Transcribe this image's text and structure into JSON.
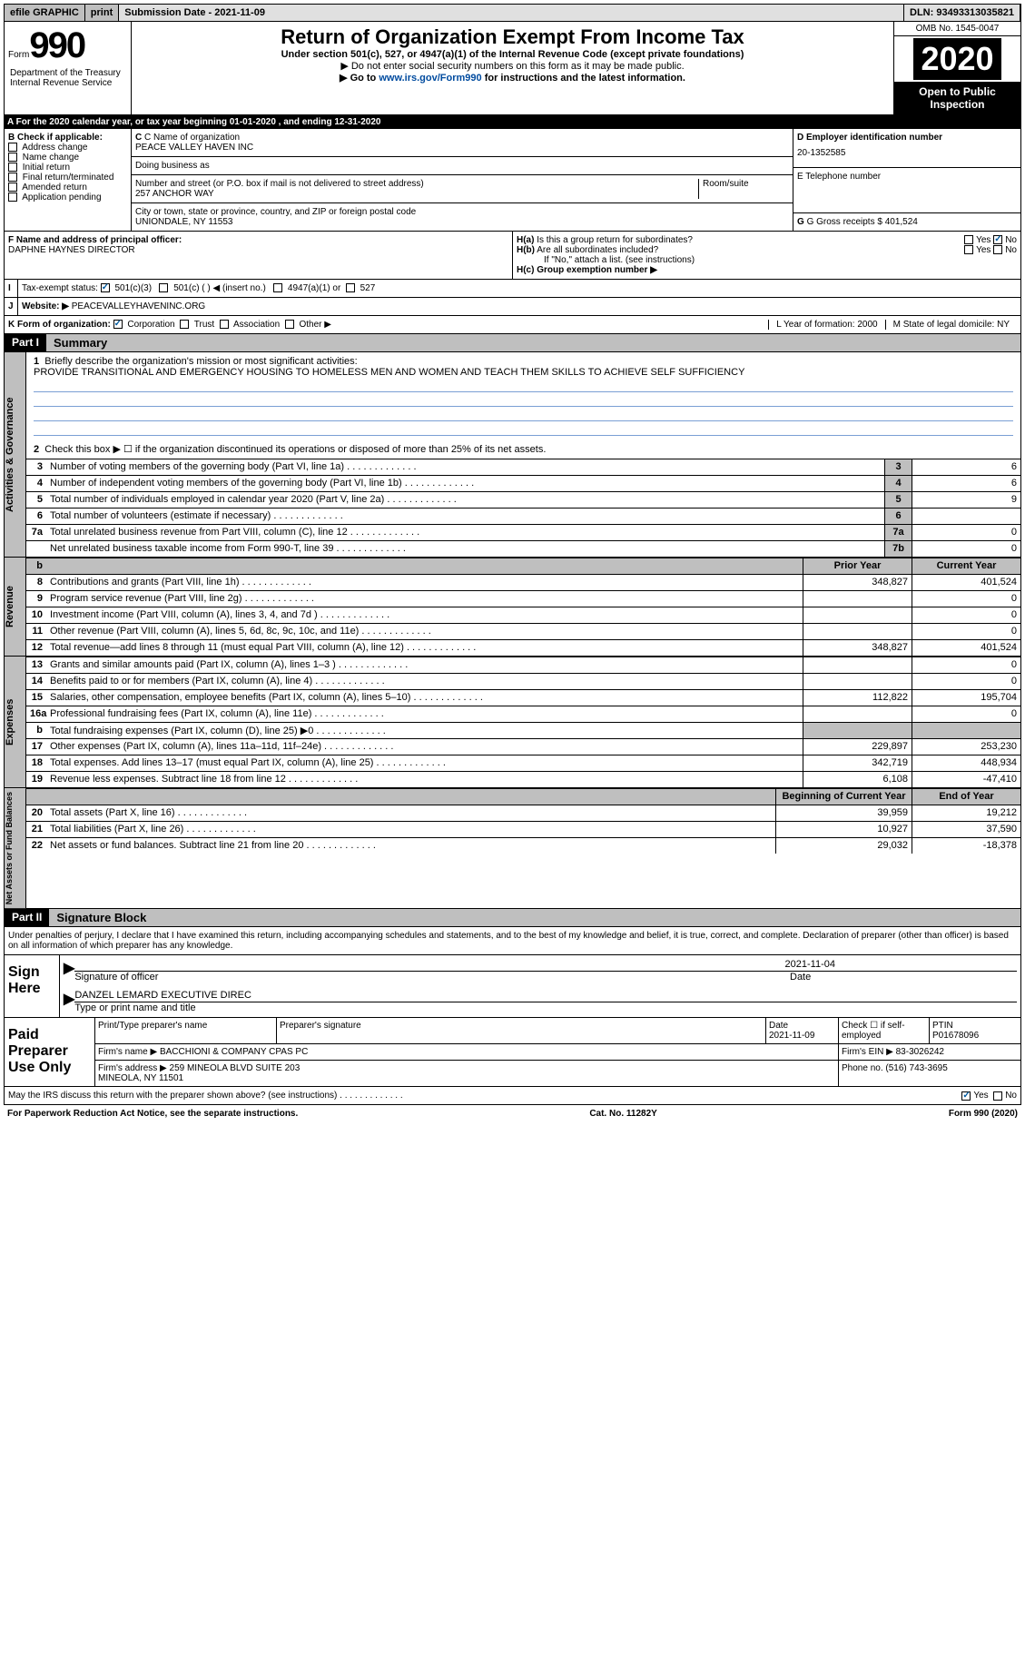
{
  "top": {
    "efile": "efile GRAPHIC",
    "print": "print",
    "sub_date_label": "Submission Date - ",
    "sub_date": "2021-11-09",
    "dln_label": "DLN: ",
    "dln": "93493313035821"
  },
  "header": {
    "form_label": "Form",
    "form_num": "990",
    "dept": "Department of the Treasury\nInternal Revenue Service",
    "title": "Return of Organization Exempt From Income Tax",
    "sub1": "Under section 501(c), 527, or 4947(a)(1) of the Internal Revenue Code (except private foundations)",
    "sub2": "▶ Do not enter social security numbers on this form as it may be made public.",
    "sub3_pre": "▶ Go to ",
    "sub3_link": "www.irs.gov/Form990",
    "sub3_post": " for instructions and the latest information.",
    "omb": "OMB No. 1545-0047",
    "year": "2020",
    "inspection": "Open to Public Inspection"
  },
  "period": "For the 2020 calendar year, or tax year beginning 01-01-2020    , and ending 12-31-2020",
  "section_b": {
    "label": "B Check if applicable:",
    "items": [
      "Address change",
      "Name change",
      "Initial return",
      "Final return/terminated",
      "Amended return",
      "Application pending"
    ]
  },
  "section_c": {
    "name_label": "C Name of organization",
    "name": "PEACE VALLEY HAVEN INC",
    "dba_label": "Doing business as",
    "addr_label": "Number and street (or P.O. box if mail is not delivered to street address)",
    "room_label": "Room/suite",
    "addr": "257 ANCHOR WAY",
    "city_label": "City or town, state or province, country, and ZIP or foreign postal code",
    "city": "UNIONDALE, NY  11553"
  },
  "section_d": {
    "ein_label": "D Employer identification number",
    "ein": "20-1352585",
    "tel_label": "E Telephone number",
    "receipts_label": "G Gross receipts $ ",
    "receipts": "401,524"
  },
  "section_f": {
    "label": "F  Name and address of principal officer:",
    "value": "DAPHNE HAYNES DIRECTOR"
  },
  "section_h": {
    "a": "H(a)  Is this a group return for subordinates?",
    "b": "H(b)  Are all subordinates included?",
    "note": "If \"No,\" attach a list. (see instructions)",
    "c": "H(c)  Group exemption number ▶"
  },
  "section_i": {
    "label": "Tax-exempt status:",
    "opt1": "501(c)(3)",
    "opt2": "501(c) (  ) ◀ (insert no.)",
    "opt3": "4947(a)(1) or",
    "opt4": "527"
  },
  "section_j": {
    "label": "Website: ▶",
    "value": "PEACEVALLEYHAVENINC.ORG"
  },
  "section_k": {
    "label": "K Form of organization:",
    "opts": [
      "Corporation",
      "Trust",
      "Association",
      "Other ▶"
    ]
  },
  "section_lm": {
    "l": "L Year of formation: 2000",
    "m": "M State of legal domicile: NY"
  },
  "part1": {
    "part": "Part I",
    "title": "Summary",
    "q1_label": "1",
    "q1": "Briefly describe the organization's mission or most significant activities:",
    "q1_text": "PROVIDE TRANSITIONAL AND EMERGENCY HOUSING TO HOMELESS MEN AND WOMEN AND TEACH THEM SKILLS TO ACHIEVE SELF SUFFICIENCY",
    "q2_label": "2",
    "q2": "Check this box ▶ ☐  if the organization discontinued its operations or disposed of more than 25% of its net assets.",
    "rows_act": [
      {
        "n": "3",
        "d": "Number of voting members of the governing body (Part VI, line 1a)",
        "box": "3",
        "v": "6"
      },
      {
        "n": "4",
        "d": "Number of independent voting members of the governing body (Part VI, line 1b)",
        "box": "4",
        "v": "6"
      },
      {
        "n": "5",
        "d": "Total number of individuals employed in calendar year 2020 (Part V, line 2a)",
        "box": "5",
        "v": "9"
      },
      {
        "n": "6",
        "d": "Total number of volunteers (estimate if necessary)",
        "box": "6",
        "v": ""
      },
      {
        "n": "7a",
        "d": "Total unrelated business revenue from Part VIII, column (C), line 12",
        "box": "7a",
        "v": "0"
      },
      {
        "n": "",
        "d": "Net unrelated business taxable income from Form 990-T, line 39",
        "box": "7b",
        "v": "0"
      }
    ],
    "col_prior": "Prior Year",
    "col_current": "Current Year",
    "rows_rev": [
      {
        "n": "8",
        "d": "Contributions and grants (Part VIII, line 1h)",
        "p": "348,827",
        "c": "401,524"
      },
      {
        "n": "9",
        "d": "Program service revenue (Part VIII, line 2g)",
        "p": "",
        "c": "0"
      },
      {
        "n": "10",
        "d": "Investment income (Part VIII, column (A), lines 3, 4, and 7d )",
        "p": "",
        "c": "0"
      },
      {
        "n": "11",
        "d": "Other revenue (Part VIII, column (A), lines 5, 6d, 8c, 9c, 10c, and 11e)",
        "p": "",
        "c": "0"
      },
      {
        "n": "12",
        "d": "Total revenue—add lines 8 through 11 (must equal Part VIII, column (A), line 12)",
        "p": "348,827",
        "c": "401,524"
      }
    ],
    "rows_exp": [
      {
        "n": "13",
        "d": "Grants and similar amounts paid (Part IX, column (A), lines 1–3 )",
        "p": "",
        "c": "0"
      },
      {
        "n": "14",
        "d": "Benefits paid to or for members (Part IX, column (A), line 4)",
        "p": "",
        "c": "0"
      },
      {
        "n": "15",
        "d": "Salaries, other compensation, employee benefits (Part IX, column (A), lines 5–10)",
        "p": "112,822",
        "c": "195,704"
      },
      {
        "n": "16a",
        "d": "Professional fundraising fees (Part IX, column (A), line 11e)",
        "p": "",
        "c": "0"
      },
      {
        "n": "b",
        "d": "Total fundraising expenses (Part IX, column (D), line 25) ▶0",
        "p": "gray",
        "c": "gray"
      },
      {
        "n": "17",
        "d": "Other expenses (Part IX, column (A), lines 11a–11d, 11f–24e)",
        "p": "229,897",
        "c": "253,230"
      },
      {
        "n": "18",
        "d": "Total expenses. Add lines 13–17 (must equal Part IX, column (A), line 25)",
        "p": "342,719",
        "c": "448,934"
      },
      {
        "n": "19",
        "d": "Revenue less expenses. Subtract line 18 from line 12",
        "p": "6,108",
        "c": "-47,410"
      }
    ],
    "col_begin": "Beginning of Current Year",
    "col_end": "End of Year",
    "rows_net": [
      {
        "n": "20",
        "d": "Total assets (Part X, line 16)",
        "p": "39,959",
        "c": "19,212"
      },
      {
        "n": "21",
        "d": "Total liabilities (Part X, line 26)",
        "p": "10,927",
        "c": "37,590"
      },
      {
        "n": "22",
        "d": "Net assets or fund balances. Subtract line 21 from line 20",
        "p": "29,032",
        "c": "-18,378"
      }
    ],
    "vert_act": "Activities & Governance",
    "vert_rev": "Revenue",
    "vert_exp": "Expenses",
    "vert_net": "Net Assets or Fund Balances"
  },
  "part2": {
    "part": "Part II",
    "title": "Signature Block",
    "penalty": "Under penalties of perjury, I declare that I have examined this return, including accompanying schedules and statements, and to the best of my knowledge and belief, it is true, correct, and complete. Declaration of preparer (other than officer) is based on all information of which preparer has any knowledge.",
    "sign_here": "Sign Here",
    "sig_officer": "Signature of officer",
    "sig_date": "Date",
    "sig_date_val": "2021-11-04",
    "sig_name": "DANZEL LEMARD  EXECUTIVE DIREC",
    "sig_type": "Type or print name and title",
    "paid_prep": "Paid Preparer Use Only",
    "p_name_label": "Print/Type preparer's name",
    "p_sig_label": "Preparer's signature",
    "p_date_label": "Date",
    "p_date": "2021-11-09",
    "p_check": "Check ☐  if self-employed",
    "p_ptin_label": "PTIN",
    "p_ptin": "P01678096",
    "firm_name_label": "Firm's name   ▶",
    "firm_name": "BACCHIONI & COMPANY CPAS PC",
    "firm_ein_label": "Firm's EIN ▶",
    "firm_ein": "83-3026242",
    "firm_addr_label": "Firm's address ▶",
    "firm_addr": "259 MINEOLA BLVD SUITE 203\nMINEOLA, NY  11501",
    "firm_phone_label": "Phone no.",
    "firm_phone": "(516) 743-3695",
    "discuss": "May the IRS discuss this return with the preparer shown above? (see instructions)"
  },
  "footer": {
    "notice": "For Paperwork Reduction Act Notice, see the separate instructions.",
    "cat": "Cat. No. 11282Y",
    "form": "Form 990 (2020)"
  }
}
